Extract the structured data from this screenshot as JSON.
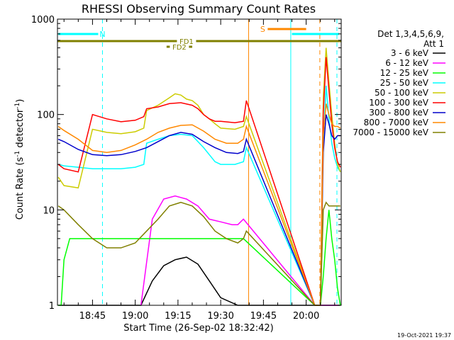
{
  "chart_data": {
    "type": "line",
    "title": "RHESSI Observing Summary Count Rates",
    "xlabel": "Start Time (26-Sep-02 18:32:42)",
    "ylabel_main": "Count Rate (s",
    "ylabel_sup1": "-1",
    "ylabel_mid": " detector",
    "ylabel_sup2": "-1",
    "ylabel_end": ")",
    "x_range_min": [
      32.7,
      132.3
    ],
    "y_scale": "log",
    "ylim": [
      1,
      1000
    ],
    "x_ticks": [
      {
        "min": 45,
        "label": "18:45"
      },
      {
        "min": 60,
        "label": "19:00"
      },
      {
        "min": 75,
        "label": "19:15"
      },
      {
        "min": 90,
        "label": "19:30"
      },
      {
        "min": 105,
        "label": "19:45"
      },
      {
        "min": 120,
        "label": "20:00"
      }
    ],
    "y_ticks": [
      {
        "value": 1,
        "label": "1"
      },
      {
        "value": 10,
        "label": "10"
      },
      {
        "value": 100,
        "label": "100"
      },
      {
        "value": 1000,
        "label": "1000"
      }
    ],
    "legend_header_1": "Det 1,3,4,5,6,9,",
    "legend_header_2": "Att 1",
    "legend_position": "right",
    "series": [
      {
        "name": "3 - 6 keV",
        "color": "#000000",
        "x": [
          33,
          50,
          62,
          66,
          70,
          74,
          78,
          82,
          86,
          90,
          96,
          98,
          123,
          125,
          126,
          127,
          128,
          129,
          130,
          131,
          132
        ],
        "y": [
          1,
          1,
          1,
          1.8,
          2.6,
          3,
          3.2,
          2.7,
          1.8,
          1.2,
          1,
          1,
          1,
          1,
          1,
          1,
          1,
          1,
          1,
          1,
          1
        ]
      },
      {
        "name": "6 - 12 keV",
        "color": "#ff00ff",
        "x": [
          62,
          66,
          70,
          74,
          78,
          82,
          86,
          90,
          94,
          96,
          98,
          123,
          126,
          127,
          128,
          129,
          130,
          131
        ],
        "y": [
          1,
          8,
          13,
          14,
          13,
          11,
          8,
          7.5,
          7,
          7,
          8,
          1,
          1,
          1,
          1,
          1,
          1,
          1
        ]
      },
      {
        "name": "12 - 25 keV",
        "color": "#00ff00",
        "x": [
          33,
          34,
          35,
          37,
          40,
          45,
          50,
          55,
          60,
          62,
          66,
          70,
          75,
          80,
          85,
          90,
          95,
          98,
          123,
          125,
          126,
          127,
          128,
          129,
          130,
          131,
          132
        ],
        "y": [
          1,
          1,
          3,
          5,
          5,
          5,
          5,
          5,
          5,
          5,
          5,
          5,
          5,
          5,
          5,
          5,
          5,
          5,
          1,
          1,
          2,
          5,
          10,
          5,
          3,
          1.5,
          1
        ]
      },
      {
        "name": "25 - 50 keV",
        "color": "#00ffff",
        "x": [
          33,
          35,
          40,
          45,
          50,
          55,
          60,
          63,
          64,
          68,
          72,
          76,
          80,
          84,
          88,
          90,
          95,
          98,
          99,
          123,
          125,
          126,
          127,
          128,
          129,
          130,
          131,
          132
        ],
        "y": [
          30,
          29,
          28,
          27,
          27,
          27,
          28,
          30,
          50,
          55,
          60,
          62,
          60,
          45,
          32,
          30,
          30,
          32,
          45,
          1,
          1,
          50,
          200,
          90,
          50,
          35,
          28,
          25
        ]
      },
      {
        "name": "50 - 100 keV",
        "color": "#cccc00",
        "x": [
          33,
          35,
          40,
          45,
          50,
          55,
          60,
          63,
          64,
          68,
          72,
          74,
          76,
          78,
          80,
          82,
          84,
          86,
          88,
          90,
          95,
          98,
          99,
          123,
          125,
          126,
          127,
          128,
          129,
          130,
          131,
          132
        ],
        "y": [
          22,
          18,
          17,
          70,
          65,
          63,
          66,
          72,
          110,
          125,
          150,
          165,
          160,
          145,
          140,
          125,
          100,
          90,
          80,
          72,
          70,
          75,
          95,
          1,
          1,
          150,
          500,
          220,
          100,
          50,
          30,
          25
        ]
      },
      {
        "name": "100 - 300 keV",
        "color": "#ff0000",
        "x": [
          33,
          35,
          40,
          45,
          50,
          55,
          60,
          63,
          64,
          68,
          72,
          76,
          80,
          82,
          84,
          86,
          88,
          90,
          95,
          98,
          99,
          123,
          125,
          126,
          127,
          128,
          129,
          130,
          131,
          132
        ],
        "y": [
          30,
          27,
          25,
          100,
          90,
          84,
          87,
          95,
          115,
          120,
          130,
          133,
          125,
          115,
          100,
          90,
          85,
          85,
          82,
          85,
          140,
          1,
          1,
          100,
          400,
          180,
          80,
          45,
          32,
          28
        ]
      },
      {
        "name": "300 - 800 keV",
        "color": "#0000cc",
        "x": [
          33,
          35,
          40,
          45,
          50,
          55,
          60,
          64,
          68,
          72,
          76,
          80,
          84,
          88,
          92,
          96,
          98,
          99,
          123,
          125,
          126,
          127,
          128,
          129,
          130,
          131,
          132
        ],
        "y": [
          55,
          52,
          43,
          38,
          37,
          38,
          41,
          45,
          52,
          60,
          65,
          62,
          52,
          45,
          40,
          39,
          41,
          55,
          1,
          1,
          40,
          100,
          80,
          60,
          55,
          60,
          60
        ]
      },
      {
        "name": "800 - 7000 keV",
        "color": "#ff8800",
        "x": [
          33,
          35,
          40,
          45,
          50,
          55,
          60,
          64,
          68,
          72,
          76,
          80,
          84,
          88,
          92,
          96,
          98,
          99,
          123,
          125,
          126,
          127,
          128,
          129,
          130,
          131,
          132
        ],
        "y": [
          75,
          68,
          55,
          42,
          40,
          42,
          48,
          55,
          65,
          72,
          77,
          78,
          67,
          55,
          50,
          50,
          55,
          75,
          1,
          1,
          60,
          130,
          100,
          80,
          75,
          75,
          72
        ]
      },
      {
        "name": "7000 - 15000 keV",
        "color": "#808000",
        "x": [
          33,
          35,
          40,
          45,
          50,
          55,
          60,
          64,
          68,
          72,
          76,
          80,
          84,
          88,
          92,
          96,
          98,
          99,
          123,
          125,
          126,
          127,
          128,
          129,
          130,
          131,
          132
        ],
        "y": [
          11,
          10,
          7,
          5,
          4,
          4,
          4.5,
          6,
          8,
          11,
          12,
          11,
          8.5,
          6,
          5,
          4.5,
          5,
          6,
          1,
          1,
          10,
          12,
          11,
          11,
          11,
          11,
          11
        ]
      }
    ],
    "attenuator_bars": [
      {
        "label": "N",
        "x_start": 33,
        "x_end": 49,
        "y_row": 1,
        "color": "#00ffff"
      },
      {
        "label": "S",
        "x_start": 104,
        "x_end": 120,
        "y_row": 0,
        "color": "#ff8800"
      },
      {
        "label": "",
        "x_start": 115,
        "x_end": 131.5,
        "y_row": 1,
        "color": "#00ffff"
      },
      {
        "label": "FD1",
        "x_start": 32.7,
        "x_end": 132.3,
        "y_row": 2,
        "color": "#808000"
      },
      {
        "label": "FD2",
        "x_start": 71,
        "x_end": 80,
        "y_row": 3,
        "color": "#808000"
      }
    ],
    "vertical_lines": [
      {
        "x": 32.7,
        "color": "#00ffff",
        "style": "solid"
      },
      {
        "x": 48.5,
        "color": "#00ffff",
        "style": "dashed"
      },
      {
        "x": 99.8,
        "color": "#ff8800",
        "style": "solid"
      },
      {
        "x": 114.6,
        "color": "#00ffff",
        "style": "solid"
      },
      {
        "x": 124.8,
        "color": "#ff8800",
        "style": "dashed"
      },
      {
        "x": 130.8,
        "color": "#00ffff",
        "style": "dashed"
      }
    ],
    "footer_date": "19-Oct-2021 19:37"
  }
}
